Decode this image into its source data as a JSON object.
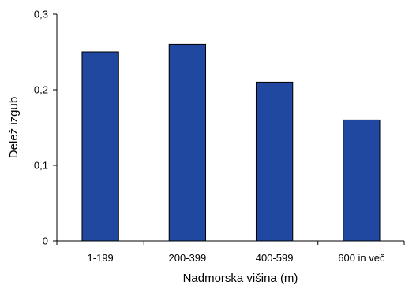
{
  "chart_data": {
    "type": "bar",
    "categories": [
      "1-199",
      "200-399",
      "400-599",
      "600 in več"
    ],
    "values": [
      0.25,
      0.26,
      0.21,
      0.16
    ],
    "xlabel": "Nadmorska višina (m)",
    "ylabel": "Delež izgub",
    "ylim": [
      0,
      0.3
    ],
    "yticks": [
      0,
      0.1,
      0.2,
      0.3
    ],
    "ytick_labels": [
      "0",
      "0,1",
      "0,2",
      "0,3"
    ],
    "grid": false,
    "legend": "none",
    "bar_color": "#2148A0",
    "bar_edge_color": "#000000"
  }
}
